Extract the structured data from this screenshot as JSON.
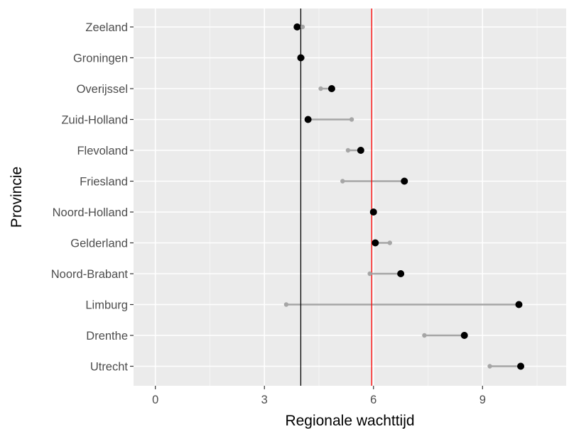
{
  "chart_data": {
    "type": "dot",
    "title": "",
    "xlabel": "Regionale wachttijd",
    "ylabel": "Provincie",
    "xlim": [
      -0.6,
      11.3
    ],
    "xticks": [
      0,
      3,
      6,
      9
    ],
    "categories": [
      "Zeeland",
      "Groningen",
      "Overijssel",
      "Zuid-Holland",
      "Flevoland",
      "Friesland",
      "Noord-Holland",
      "Gelderland",
      "Noord-Brabant",
      "Limburg",
      "Drenthe",
      "Utrecht"
    ],
    "series": [
      {
        "color": "#a6a6a6",
        "values": [
          4.05,
          4.05,
          4.55,
          5.4,
          5.3,
          5.15,
          6.0,
          6.45,
          5.9,
          3.6,
          7.4,
          9.2
        ]
      },
      {
        "color": "#000000",
        "values": [
          3.9,
          4.0,
          4.85,
          4.2,
          5.65,
          6.85,
          6.0,
          6.05,
          6.75,
          10.0,
          8.5,
          10.05
        ]
      }
    ],
    "reference_lines": [
      {
        "x": 4.0,
        "color": "#000000"
      },
      {
        "x": 5.95,
        "color": "#ff0000"
      }
    ],
    "panel_background": "#ebebeb",
    "grid": true
  }
}
